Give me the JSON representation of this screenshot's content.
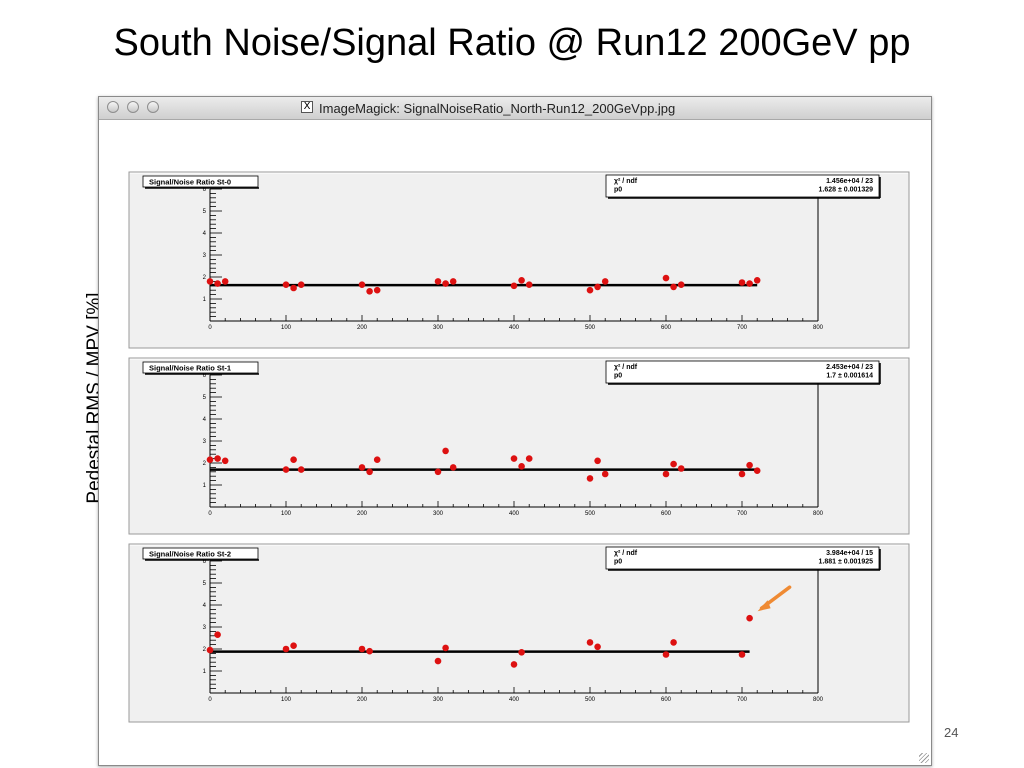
{
  "slide": {
    "title": "South Noise/Signal Ratio @ Run12 200GeV pp",
    "ylabel": "Pedestal RMS / MPV [%]",
    "page_number": "24"
  },
  "window": {
    "title": "ImageMagick: SignalNoiseRatio_North-Run12_200GeVpp.jpg",
    "icon": "x11-icon"
  },
  "colors": {
    "marker": "#dd1111",
    "fit_line": "#000000",
    "arrow": "#ef8a33",
    "panel_bg": "#f0f0f0"
  },
  "chart_data": [
    {
      "type": "scatter",
      "title": "Signal/Noise Ratio St-0",
      "stats": [
        {
          "label": "χ² / ndf",
          "value": "1.456e+04 / 23"
        },
        {
          "label": "p0",
          "value": "1.628 ± 0.001329"
        }
      ],
      "fit_p0": 1.628,
      "fit_range": [
        0,
        720
      ],
      "xlim": [
        0,
        800
      ],
      "ylim": [
        0,
        6
      ],
      "xticks": [
        0,
        100,
        200,
        300,
        400,
        500,
        600,
        700,
        800
      ],
      "yticks": [
        1,
        2,
        3,
        4,
        5,
        6
      ],
      "points": [
        [
          0,
          1.8
        ],
        [
          10,
          1.7
        ],
        [
          20,
          1.8
        ],
        [
          100,
          1.65
        ],
        [
          110,
          1.5
        ],
        [
          120,
          1.65
        ],
        [
          200,
          1.65
        ],
        [
          210,
          1.35
        ],
        [
          220,
          1.4
        ],
        [
          300,
          1.8
        ],
        [
          310,
          1.7
        ],
        [
          320,
          1.8
        ],
        [
          400,
          1.6
        ],
        [
          410,
          1.85
        ],
        [
          420,
          1.65
        ],
        [
          500,
          1.4
        ],
        [
          510,
          1.55
        ],
        [
          520,
          1.8
        ],
        [
          600,
          1.95
        ],
        [
          610,
          1.55
        ],
        [
          620,
          1.65
        ],
        [
          700,
          1.75
        ],
        [
          710,
          1.7
        ],
        [
          720,
          1.85
        ]
      ]
    },
    {
      "type": "scatter",
      "title": "Signal/Noise Ratio St-1",
      "stats": [
        {
          "label": "χ² / ndf",
          "value": "2.453e+04 / 23"
        },
        {
          "label": "p0",
          "value": "1.7 ± 0.001614"
        }
      ],
      "fit_p0": 1.7,
      "fit_range": [
        0,
        720
      ],
      "xlim": [
        0,
        800
      ],
      "ylim": [
        0,
        6
      ],
      "xticks": [
        0,
        100,
        200,
        300,
        400,
        500,
        600,
        700,
        800
      ],
      "yticks": [
        1,
        2,
        3,
        4,
        5,
        6
      ],
      "points": [
        [
          0,
          2.15
        ],
        [
          10,
          2.2
        ],
        [
          20,
          2.1
        ],
        [
          100,
          1.7
        ],
        [
          110,
          2.15
        ],
        [
          120,
          1.7
        ],
        [
          200,
          1.8
        ],
        [
          210,
          1.6
        ],
        [
          220,
          2.15
        ],
        [
          300,
          1.6
        ],
        [
          310,
          2.55
        ],
        [
          320,
          1.8
        ],
        [
          400,
          2.2
        ],
        [
          410,
          1.85
        ],
        [
          420,
          2.2
        ],
        [
          500,
          1.3
        ],
        [
          510,
          2.1
        ],
        [
          520,
          1.5
        ],
        [
          600,
          1.5
        ],
        [
          610,
          1.95
        ],
        [
          620,
          1.75
        ],
        [
          700,
          1.5
        ],
        [
          710,
          1.9
        ],
        [
          720,
          1.65
        ]
      ]
    },
    {
      "type": "scatter",
      "title": "Signal/Noise Ratio St-2",
      "stats": [
        {
          "label": "χ² / ndf",
          "value": "3.984e+04 / 15"
        },
        {
          "label": "p0",
          "value": "1.881 ± 0.001925"
        }
      ],
      "fit_p0": 1.881,
      "fit_range": [
        0,
        710
      ],
      "xlim": [
        0,
        800
      ],
      "ylim": [
        0,
        6
      ],
      "xticks": [
        0,
        100,
        200,
        300,
        400,
        500,
        600,
        700,
        800
      ],
      "yticks": [
        1,
        2,
        3,
        4,
        5,
        6
      ],
      "points": [
        [
          0,
          1.95
        ],
        [
          10,
          2.65
        ],
        [
          100,
          2.0
        ],
        [
          110,
          2.15
        ],
        [
          200,
          2.0
        ],
        [
          210,
          1.9
        ],
        [
          300,
          1.45
        ],
        [
          310,
          2.05
        ],
        [
          400,
          1.3
        ],
        [
          410,
          1.85
        ],
        [
          500,
          2.3
        ],
        [
          510,
          2.1
        ],
        [
          600,
          1.75
        ],
        [
          610,
          2.3
        ],
        [
          700,
          1.75
        ],
        [
          710,
          3.4
        ]
      ],
      "arrow_target": [
        710,
        3.4
      ]
    }
  ]
}
